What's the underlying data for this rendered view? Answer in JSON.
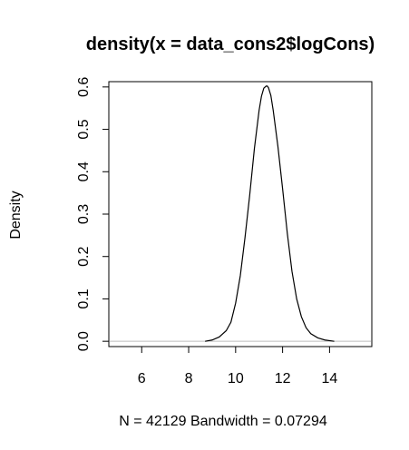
{
  "chart_data": {
    "type": "line",
    "title": "density(x = data_cons2$logCons)",
    "xlabel": "N = 42129   Bandwidth = 0.07294",
    "ylabel": "Density",
    "xlim": [
      4.6,
      15.8
    ],
    "ylim": [
      -0.0125,
      0.6125
    ],
    "x_ticks": [
      6,
      8,
      10,
      12,
      14
    ],
    "y_ticks": [
      0.0,
      0.1,
      0.2,
      0.3,
      0.4,
      0.5,
      0.6
    ],
    "y_tick_labels": [
      "0.0",
      "0.1",
      "0.2",
      "0.3",
      "0.4",
      "0.5",
      "0.6"
    ],
    "baseline": 0,
    "baseline_color": "#bebebe",
    "line_color": "#000000",
    "grid": false,
    "legend": "none",
    "series": [
      {
        "x": [
          8.7,
          9.0,
          9.3,
          9.6,
          9.8,
          10.0,
          10.2,
          10.4,
          10.6,
          10.8,
          11.0,
          11.1,
          11.2,
          11.3,
          11.35,
          11.4,
          11.5,
          11.6,
          11.8,
          12.0,
          12.2,
          12.4,
          12.6,
          12.8,
          13.0,
          13.2,
          13.5,
          13.8,
          14.2
        ],
        "y": [
          0.0,
          0.003,
          0.01,
          0.025,
          0.045,
          0.09,
          0.155,
          0.245,
          0.345,
          0.455,
          0.545,
          0.578,
          0.597,
          0.602,
          0.602,
          0.598,
          0.58,
          0.545,
          0.46,
          0.36,
          0.255,
          0.165,
          0.1,
          0.058,
          0.032,
          0.018,
          0.008,
          0.003,
          0.0
        ]
      }
    ]
  }
}
